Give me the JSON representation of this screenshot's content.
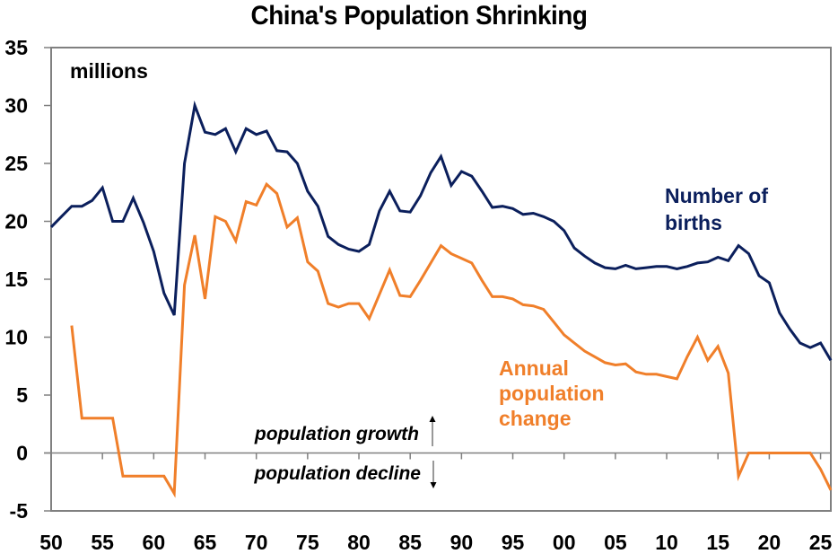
{
  "chart_data": {
    "type": "line",
    "title": "China's Population Shrinking",
    "unit_label": "millions",
    "xlabel": "",
    "ylabel": "",
    "xlim": [
      1950,
      2026
    ],
    "ylim": [
      -5,
      35
    ],
    "yticks": [
      -5,
      0,
      5,
      10,
      15,
      20,
      25,
      30,
      35
    ],
    "ytick_labels": [
      "-5",
      "0",
      "5",
      "10",
      "15",
      "20",
      "25",
      "30",
      "35"
    ],
    "xticks": [
      1950,
      1955,
      1960,
      1965,
      1970,
      1975,
      1980,
      1985,
      1990,
      1995,
      2000,
      2005,
      2010,
      2015,
      2020,
      2025
    ],
    "xtick_labels": [
      "50",
      "55",
      "60",
      "65",
      "70",
      "75",
      "80",
      "85",
      "90",
      "95",
      "00",
      "05",
      "10",
      "15",
      "20",
      "25"
    ],
    "grid": false,
    "legend": "inline-labels",
    "series": [
      {
        "name": "Number of births",
        "label_lines": [
          "Number of",
          "births"
        ],
        "color": "#0b1f5c",
        "x": [
          1950,
          1951,
          1952,
          1953,
          1954,
          1955,
          1956,
          1957,
          1958,
          1959,
          1960,
          1961,
          1962,
          1963,
          1964,
          1965,
          1966,
          1967,
          1968,
          1969,
          1970,
          1971,
          1972,
          1973,
          1974,
          1975,
          1976,
          1977,
          1978,
          1979,
          1980,
          1981,
          1982,
          1983,
          1984,
          1985,
          1986,
          1987,
          1988,
          1989,
          1990,
          1991,
          1992,
          1993,
          1994,
          1995,
          1996,
          1997,
          1998,
          1999,
          2000,
          2001,
          2002,
          2003,
          2004,
          2005,
          2006,
          2007,
          2008,
          2009,
          2010,
          2011,
          2012,
          2013,
          2014,
          2015,
          2016,
          2017,
          2018,
          2019,
          2020,
          2021,
          2022,
          2023,
          2024,
          2025,
          2026
        ],
        "values": [
          19.5,
          20.4,
          21.3,
          21.3,
          21.8,
          22.9,
          20.0,
          20.0,
          22.0,
          19.9,
          17.4,
          13.8,
          11.9,
          25.0,
          30.0,
          27.7,
          27.5,
          28.0,
          26.0,
          28.0,
          27.5,
          27.8,
          26.1,
          26.0,
          25.0,
          22.6,
          21.3,
          18.7,
          18.0,
          17.6,
          17.4,
          18.0,
          20.9,
          22.6,
          20.9,
          20.8,
          22.2,
          24.2,
          25.6,
          23.1,
          24.3,
          23.9,
          22.6,
          21.2,
          21.3,
          21.1,
          20.6,
          20.7,
          20.4,
          20.0,
          19.2,
          17.7,
          17.0,
          16.4,
          16.0,
          15.9,
          16.2,
          15.9,
          16.0,
          16.1,
          16.1,
          15.9,
          16.1,
          16.4,
          16.5,
          16.9,
          16.6,
          17.9,
          17.2,
          15.3,
          14.7,
          12.1,
          10.7,
          9.5,
          9.1,
          9.5,
          8.0
        ]
      },
      {
        "name": "Annual population change",
        "label_lines": [
          "Annual",
          "population",
          "change"
        ],
        "color": "#f07f2a",
        "x": [
          1952,
          1953,
          1954,
          1955,
          1956,
          1957,
          1958,
          1959,
          1960,
          1961,
          1962,
          1963,
          1964,
          1965,
          1966,
          1967,
          1968,
          1969,
          1970,
          1971,
          1972,
          1973,
          1974,
          1975,
          1976,
          1977,
          1978,
          1979,
          1980,
          1981,
          1982,
          1983,
          1984,
          1985,
          1986,
          1987,
          1988,
          1989,
          1990,
          1991,
          1992,
          1993,
          1994,
          1995,
          1996,
          1997,
          1998,
          1999,
          2000,
          2001,
          2002,
          2003,
          2004,
          2005,
          2006,
          2007,
          2008,
          2009,
          2010,
          2011,
          2012,
          2013,
          2014,
          2015,
          2016,
          2017,
          2018,
          2019,
          2020,
          2021,
          2022,
          2023,
          2024,
          2025,
          2026
        ],
        "values": [
          11.0,
          3.0,
          3.0,
          3.0,
          3.0,
          -2.0,
          -2.0,
          -2.0,
          -2.0,
          -2.0,
          -3.5,
          14.5,
          18.8,
          13.3,
          20.4,
          20.0,
          18.3,
          21.7,
          21.4,
          23.2,
          22.4,
          19.5,
          20.3,
          16.5,
          15.7,
          12.9,
          12.6,
          12.9,
          12.9,
          11.6,
          13.7,
          15.8,
          13.6,
          13.5,
          14.9,
          16.4,
          17.9,
          17.2,
          16.8,
          16.4,
          14.9,
          13.5,
          13.5,
          13.3,
          12.8,
          12.7,
          12.4,
          11.3,
          10.2,
          9.5,
          8.8,
          8.3,
          7.8,
          7.6,
          7.7,
          7.0,
          6.8,
          6.8,
          6.6,
          6.4,
          8.3,
          10.0,
          8.0,
          9.2,
          6.9,
          -2.0,
          0.0,
          0.0,
          0.0,
          0.0,
          0.0,
          0.0,
          0.0,
          -1.4,
          -3.2
        ]
      }
    ],
    "annotations": {
      "growth_label": "population growth",
      "decline_label": "population decline"
    }
  }
}
